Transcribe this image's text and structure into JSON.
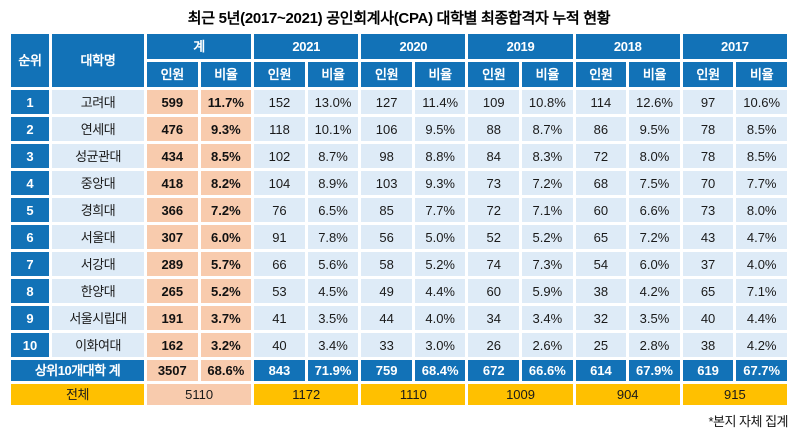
{
  "title": "최근 5년(2017~2021) 공인회계사(CPA) 대학별 최종합격자 누적 현황",
  "footnote": "*본지 자체 집계",
  "colors": {
    "header_blue": "#1272B7",
    "light_blue": "#DEEBF7",
    "peach": "#F8CBAD",
    "gold": "#FFC000"
  },
  "table": {
    "headers": {
      "rank": "순위",
      "university": "대학명",
      "count": "인원",
      "ratio": "비율",
      "groups": [
        "계",
        "2021",
        "2020",
        "2019",
        "2018",
        "2017"
      ]
    },
    "rows": [
      {
        "rank": "1",
        "university": "고려대",
        "total": [
          "599",
          "11.7%"
        ],
        "years": [
          [
            "152",
            "13.0%"
          ],
          [
            "127",
            "11.4%"
          ],
          [
            "109",
            "10.8%"
          ],
          [
            "114",
            "12.6%"
          ],
          [
            "97",
            "10.6%"
          ]
        ]
      },
      {
        "rank": "2",
        "university": "연세대",
        "total": [
          "476",
          "9.3%"
        ],
        "years": [
          [
            "118",
            "10.1%"
          ],
          [
            "106",
            "9.5%"
          ],
          [
            "88",
            "8.7%"
          ],
          [
            "86",
            "9.5%"
          ],
          [
            "78",
            "8.5%"
          ]
        ]
      },
      {
        "rank": "3",
        "university": "성균관대",
        "total": [
          "434",
          "8.5%"
        ],
        "years": [
          [
            "102",
            "8.7%"
          ],
          [
            "98",
            "8.8%"
          ],
          [
            "84",
            "8.3%"
          ],
          [
            "72",
            "8.0%"
          ],
          [
            "78",
            "8.5%"
          ]
        ]
      },
      {
        "rank": "4",
        "university": "중앙대",
        "total": [
          "418",
          "8.2%"
        ],
        "years": [
          [
            "104",
            "8.9%"
          ],
          [
            "103",
            "9.3%"
          ],
          [
            "73",
            "7.2%"
          ],
          [
            "68",
            "7.5%"
          ],
          [
            "70",
            "7.7%"
          ]
        ]
      },
      {
        "rank": "5",
        "university": "경희대",
        "total": [
          "366",
          "7.2%"
        ],
        "years": [
          [
            "76",
            "6.5%"
          ],
          [
            "85",
            "7.7%"
          ],
          [
            "72",
            "7.1%"
          ],
          [
            "60",
            "6.6%"
          ],
          [
            "73",
            "8.0%"
          ]
        ]
      },
      {
        "rank": "6",
        "university": "서울대",
        "total": [
          "307",
          "6.0%"
        ],
        "years": [
          [
            "91",
            "7.8%"
          ],
          [
            "56",
            "5.0%"
          ],
          [
            "52",
            "5.2%"
          ],
          [
            "65",
            "7.2%"
          ],
          [
            "43",
            "4.7%"
          ]
        ]
      },
      {
        "rank": "7",
        "university": "서강대",
        "total": [
          "289",
          "5.7%"
        ],
        "years": [
          [
            "66",
            "5.6%"
          ],
          [
            "58",
            "5.2%"
          ],
          [
            "74",
            "7.3%"
          ],
          [
            "54",
            "6.0%"
          ],
          [
            "37",
            "4.0%"
          ]
        ]
      },
      {
        "rank": "8",
        "university": "한양대",
        "total": [
          "265",
          "5.2%"
        ],
        "years": [
          [
            "53",
            "4.5%"
          ],
          [
            "49",
            "4.4%"
          ],
          [
            "60",
            "5.9%"
          ],
          [
            "38",
            "4.2%"
          ],
          [
            "65",
            "7.1%"
          ]
        ]
      },
      {
        "rank": "9",
        "university": "서울시립대",
        "total": [
          "191",
          "3.7%"
        ],
        "years": [
          [
            "41",
            "3.5%"
          ],
          [
            "44",
            "4.0%"
          ],
          [
            "34",
            "3.4%"
          ],
          [
            "32",
            "3.5%"
          ],
          [
            "40",
            "4.4%"
          ]
        ]
      },
      {
        "rank": "10",
        "university": "이화여대",
        "total": [
          "162",
          "3.2%"
        ],
        "years": [
          [
            "40",
            "3.4%"
          ],
          [
            "33",
            "3.0%"
          ],
          [
            "26",
            "2.6%"
          ],
          [
            "25",
            "2.8%"
          ],
          [
            "38",
            "4.2%"
          ]
        ]
      }
    ],
    "top10": {
      "label": "상위10개대학 계",
      "total": [
        "3507",
        "68.6%"
      ],
      "years": [
        [
          "843",
          "71.9%"
        ],
        [
          "759",
          "68.4%"
        ],
        [
          "672",
          "66.6%"
        ],
        [
          "614",
          "67.9%"
        ],
        [
          "619",
          "67.7%"
        ]
      ]
    },
    "overall": {
      "label": "전체",
      "total": "5110",
      "years": [
        "1172",
        "1110",
        "1009",
        "904",
        "915"
      ]
    }
  },
  "chart_data": {
    "type": "table",
    "title": "최근 5년(2017~2021) 공인회계사(CPA) 대학별 최종합격자 누적 현황",
    "columns": [
      "순위",
      "대학명",
      "계 인원",
      "계 비율(%)",
      "2021 인원",
      "2021 비율(%)",
      "2020 인원",
      "2020 비율(%)",
      "2019 인원",
      "2019 비율(%)",
      "2018 인원",
      "2018 비율(%)",
      "2017 인원",
      "2017 비율(%)"
    ],
    "rows": [
      [
        1,
        "고려대",
        599,
        11.7,
        152,
        13.0,
        127,
        11.4,
        109,
        10.8,
        114,
        12.6,
        97,
        10.6
      ],
      [
        2,
        "연세대",
        476,
        9.3,
        118,
        10.1,
        106,
        9.5,
        88,
        8.7,
        86,
        9.5,
        78,
        8.5
      ],
      [
        3,
        "성균관대",
        434,
        8.5,
        102,
        8.7,
        98,
        8.8,
        84,
        8.3,
        72,
        8.0,
        78,
        8.5
      ],
      [
        4,
        "중앙대",
        418,
        8.2,
        104,
        8.9,
        103,
        9.3,
        73,
        7.2,
        68,
        7.5,
        70,
        7.7
      ],
      [
        5,
        "경희대",
        366,
        7.2,
        76,
        6.5,
        85,
        7.7,
        72,
        7.1,
        60,
        6.6,
        73,
        8.0
      ],
      [
        6,
        "서울대",
        307,
        6.0,
        91,
        7.8,
        56,
        5.0,
        52,
        5.2,
        65,
        7.2,
        43,
        4.7
      ],
      [
        7,
        "서강대",
        289,
        5.7,
        66,
        5.6,
        58,
        5.2,
        74,
        7.3,
        54,
        6.0,
        37,
        4.0
      ],
      [
        8,
        "한양대",
        265,
        5.2,
        53,
        4.5,
        49,
        4.4,
        60,
        5.9,
        38,
        4.2,
        65,
        7.1
      ],
      [
        9,
        "서울시립대",
        191,
        3.7,
        41,
        3.5,
        44,
        4.0,
        34,
        3.4,
        32,
        3.5,
        40,
        4.4
      ],
      [
        10,
        "이화여대",
        162,
        3.2,
        40,
        3.4,
        33,
        3.0,
        26,
        2.6,
        25,
        2.8,
        38,
        4.2
      ],
      [
        "상위10개대학 계",
        "",
        3507,
        68.6,
        843,
        71.9,
        759,
        68.4,
        672,
        66.6,
        614,
        67.9,
        619,
        67.7
      ],
      [
        "전체",
        "",
        5110,
        null,
        1172,
        null,
        1110,
        null,
        1009,
        null,
        904,
        null,
        915,
        null
      ]
    ],
    "footnote": "*본지 자체 집계"
  }
}
